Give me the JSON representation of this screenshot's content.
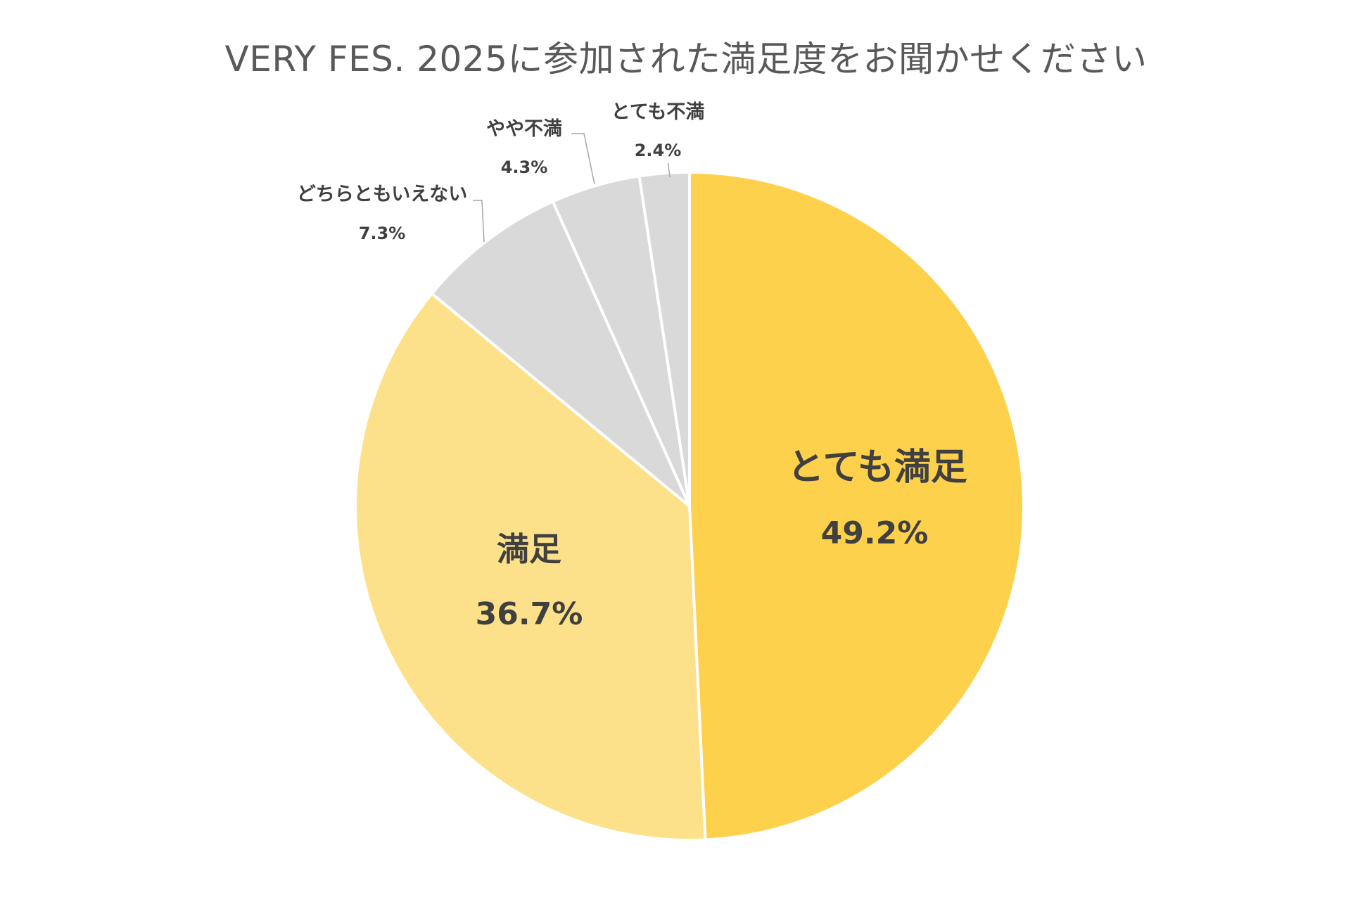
{
  "chart_data": {
    "type": "pie",
    "title": "VERY FES. 2025に参加された満足度をお聞かせください",
    "start_angle": "12 o'clock",
    "direction": "clockwise",
    "slices": [
      {
        "label": "とても満足",
        "value": 49.2,
        "display": "49.2%",
        "color": "#FED14C",
        "label_placement": "inside"
      },
      {
        "label": "満足",
        "value": 36.7,
        "display": "36.7%",
        "color": "#FDE18A",
        "label_placement": "inside"
      },
      {
        "label": "どちらともいえない",
        "value": 7.3,
        "display": "7.3%",
        "color": "#D9D9D9",
        "label_placement": "outside"
      },
      {
        "label": "やや不満",
        "value": 4.3,
        "display": "4.3%",
        "color": "#D9D9D9",
        "label_placement": "outside"
      },
      {
        "label": "とても不満",
        "value": 2.4,
        "display": "2.4%",
        "color": "#D9D9D9",
        "label_placement": "outside"
      }
    ],
    "legend": "none"
  }
}
